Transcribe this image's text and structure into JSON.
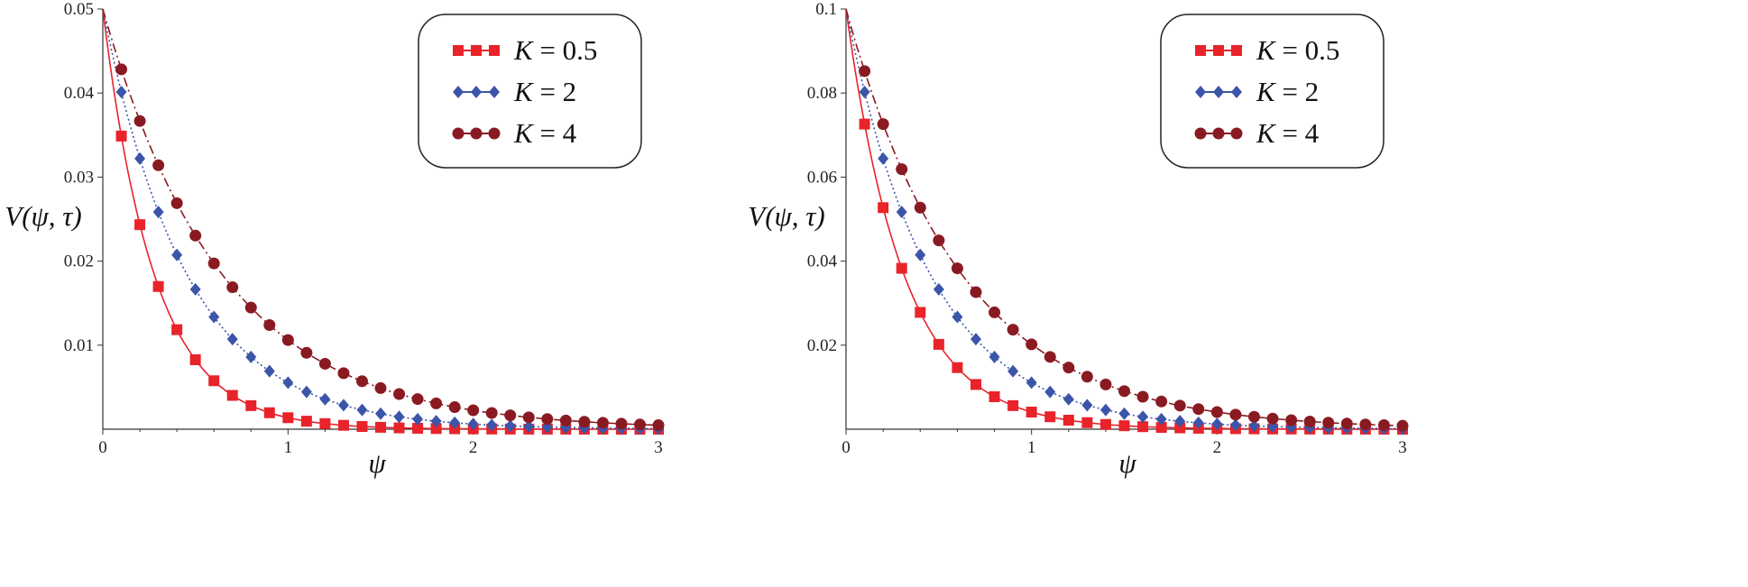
{
  "chart_data": [
    {
      "type": "line",
      "xlabel": "ψ",
      "ylabel": "V(ψ, τ)",
      "xlim": [
        0,
        3
      ],
      "ylim": [
        0,
        0.05
      ],
      "x_ticks": [
        "0",
        "1",
        "2",
        "3"
      ],
      "y_ticks": [
        "0.01",
        "0.02",
        "0.03",
        "0.04",
        "0.05"
      ],
      "grid": false,
      "legend_position": "top-right",
      "series": [
        {
          "name": "K = 0.5",
          "color": "#e8232a",
          "marker": "square",
          "line": "solid",
          "decay": 3.6,
          "y0": 0.05
        },
        {
          "name": "K = 2",
          "color": "#3b55a8",
          "marker": "diamond",
          "line": "dotted",
          "decay": 2.2,
          "y0": 0.05
        },
        {
          "name": "K = 4",
          "color": "#8a1a22",
          "marker": "circle",
          "line": "dashdot",
          "decay": 1.55,
          "y0": 0.05
        }
      ]
    },
    {
      "type": "line",
      "xlabel": "ψ",
      "ylabel": "V(ψ, τ)",
      "xlim": [
        0,
        3
      ],
      "ylim": [
        0,
        0.1
      ],
      "x_ticks": [
        "0",
        "1",
        "2",
        "3"
      ],
      "y_ticks": [
        "0.02",
        "0.04",
        "0.06",
        "0.08",
        "0.1"
      ],
      "grid": false,
      "legend_position": "top-right",
      "series": [
        {
          "name": "K = 0.5",
          "color": "#e8232a",
          "marker": "square",
          "line": "solid",
          "decay": 3.2,
          "y0": 0.1
        },
        {
          "name": "K = 2",
          "color": "#3b55a8",
          "marker": "diamond",
          "line": "dotted",
          "decay": 2.2,
          "y0": 0.1
        },
        {
          "name": "K = 4",
          "color": "#8a1a22",
          "marker": "circle",
          "line": "dashdot",
          "decay": 1.6,
          "y0": 0.1
        }
      ]
    }
  ]
}
